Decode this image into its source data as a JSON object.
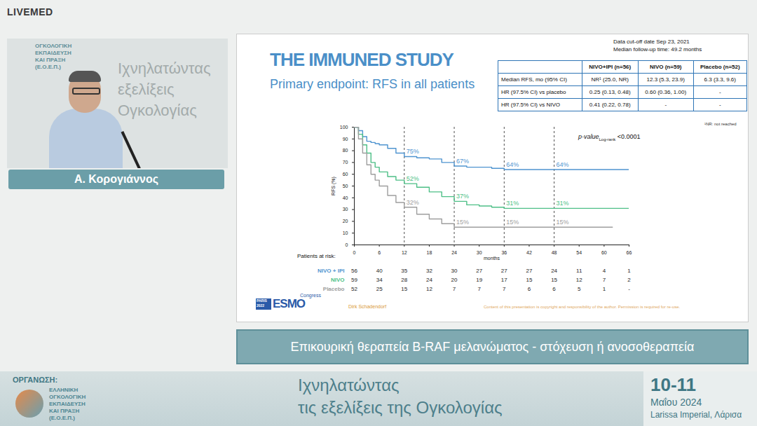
{
  "page": {
    "brand": "LIVEMED",
    "speaker_name": "Α. Κορογιάννος",
    "speaker_backdrop": [
      "Ιχνηλατώντας",
      "εξελίξεις",
      "Ογκολογίας"
    ],
    "caption": "Επικουρική θεραπεία B-RAF μελανώματος - στόχευση ή ανοσοθεραπεία",
    "organizer_label": "ΟΡΓΑΝΩΣΗ:",
    "organizer": [
      "ΕΛΛΗΝΙΚΗ",
      "ΟΓΚΟΛΟΓΙΚΗ",
      "ΕΚΠΑΙΔΕΥΣΗ",
      "ΚΑΙ ΠΡΑΞΗ",
      "(Ε.Ο.Ε.Π.)"
    ],
    "event_title": [
      "Ιχνηλατώντας",
      "τις εξελίξεις της Ογκολογίας"
    ],
    "event_dates": "10-11",
    "event_month": "Μαΐου 2024",
    "event_venue": "Larissa Imperial, Λάρισα"
  },
  "slide": {
    "title": "THE IMMUNED STUDY",
    "subtitle": "Primary endpoint: RFS in all patients",
    "cutoff": [
      "Data cut-off date Sep 23, 2021",
      "Median follow-up time: 49.2 months"
    ],
    "table": {
      "header": [
        null,
        "NIVO+IPI (n=56)",
        "NIVO (n=59)",
        "Placebo (n=52)"
      ],
      "rows": [
        [
          "Median RFS, mo (95% CI)",
          "NR¹ (25.0, NR)",
          "12.3 (5.3, 23.9)",
          "6.3 (3.3, 9.6)"
        ],
        [
          "HR (97.5% CI) vs placebo",
          "0.25 (0.13, 0.48)",
          "0.60 (0.36, 1.00)",
          "-"
        ],
        [
          "HR (97.5% CI) vs NIVO",
          "0.41 (0.22, 0.78)",
          "-",
          "-"
        ]
      ]
    },
    "table_note": "¹NR: not reached",
    "congress": {
      "city": "PARIS",
      "year": "2022",
      "name": "ESMO",
      "suffix": "Congress"
    },
    "author": "Dirk Schadendorf",
    "copyright": "Content of this presentation is copyright and responsibility of the author. Permission is required for re-use."
  },
  "chart_data": {
    "type": "line",
    "line_style": "step",
    "xlabel": "months",
    "ylabel": "RFS (%)",
    "xlim": [
      0,
      66
    ],
    "xticks": [
      0,
      6,
      12,
      18,
      24,
      30,
      36,
      42,
      48,
      54,
      60,
      66
    ],
    "ylim": [
      0,
      100
    ],
    "yticks": [
      0,
      10,
      20,
      30,
      40,
      50,
      60,
      70,
      80,
      90,
      100
    ],
    "grid": false,
    "x": [
      0,
      1,
      2,
      3,
      4,
      5,
      6,
      8,
      10,
      12,
      15,
      18,
      21,
      24,
      27,
      30,
      33,
      36,
      42,
      48,
      54,
      60,
      62,
      66
    ],
    "landmarks": [
      12,
      24,
      36,
      48
    ],
    "p_value": {
      "label": "p-value",
      "subscript": "Log-rank",
      "text": "<0.0001"
    },
    "at_risk_title": "Patients at risk:",
    "series": [
      {
        "name": "NIVO + IPI",
        "color": "#4f94d0",
        "values": [
          100,
          97,
          92,
          88,
          87,
          86,
          85,
          82,
          78,
          75,
          74,
          73,
          70,
          67,
          66,
          66,
          65,
          64,
          64,
          64,
          64,
          64,
          64,
          64
        ],
        "landmark_values": [
          75,
          67,
          64,
          64
        ],
        "landmark_labels": [
          "75%",
          "67%",
          "64%",
          "64%"
        ],
        "at_risk": [
          56,
          40,
          35,
          32,
          30,
          27,
          27,
          27,
          24,
          11,
          4,
          1
        ]
      },
      {
        "name": "NIVO",
        "color": "#4dbf86",
        "values": [
          100,
          94,
          85,
          78,
          70,
          66,
          62,
          58,
          55,
          52,
          49,
          45,
          41,
          37,
          34,
          33,
          32,
          31,
          31,
          31,
          31,
          31,
          31,
          31
        ],
        "landmark_values": [
          52,
          37,
          31,
          31
        ],
        "landmark_labels": [
          "52%",
          "37%",
          "31%",
          "31%"
        ],
        "at_risk": [
          59,
          34,
          28,
          24,
          20,
          19,
          17,
          15,
          15,
          12,
          7,
          2
        ]
      },
      {
        "name": "Placebo",
        "color": "#9e9e9e",
        "values": [
          100,
          90,
          78,
          68,
          60,
          55,
          50,
          42,
          36,
          32,
          26,
          22,
          18,
          15,
          15,
          15,
          15,
          15,
          15,
          15,
          15,
          15,
          15,
          null
        ],
        "landmark_values": [
          32,
          15,
          15,
          15
        ],
        "landmark_labels": [
          "32%",
          "15%",
          "15%",
          "15%"
        ],
        "at_risk": [
          52,
          25,
          15,
          12,
          7,
          7,
          7,
          6,
          6,
          5,
          1,
          "-"
        ]
      }
    ]
  }
}
